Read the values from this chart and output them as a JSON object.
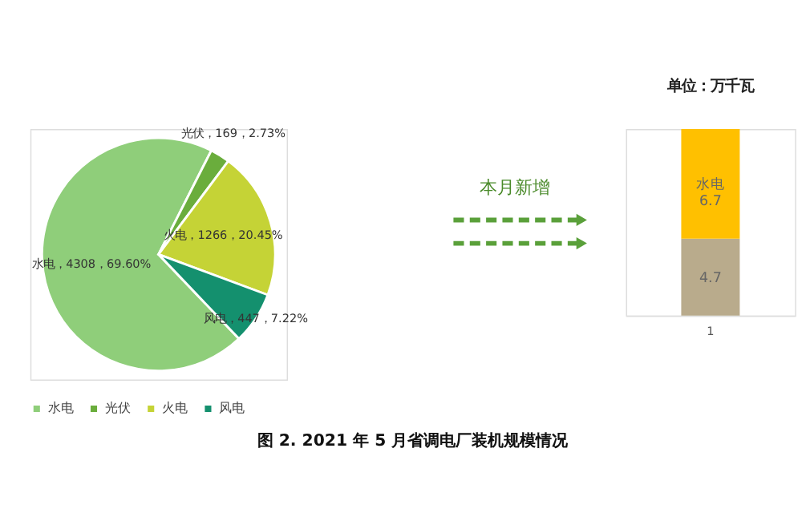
{
  "chart_data": [
    {
      "type": "pie",
      "title": "图 2.   2021 年 5 月省调电厂装机规模情况",
      "categories": [
        "水电",
        "光伏",
        "火电",
        "风电"
      ],
      "values": [
        4308,
        169,
        1266,
        447
      ],
      "value_labels": [
        "，4308，69.60%",
        "，169，2.73%",
        "，1266，20.45%",
        "，447，7.22%"
      ],
      "colors": [
        "#8fce7a",
        "#6aad3c",
        "#c5d336",
        "#14906e"
      ],
      "legend": "bottom"
    },
    {
      "type": "bar",
      "title": "单位：万千瓦",
      "stacked": true,
      "categories": [
        "1"
      ],
      "series": [
        {
          "color": "#b9ab8c",
          "values": [
            4.7
          ]
        },
        {
          "name": "水电",
          "color": "#ffc000",
          "values": [
            6.7
          ]
        }
      ],
      "data_labels": true,
      "annotations": [
        "本月新增"
      ]
    }
  ]
}
